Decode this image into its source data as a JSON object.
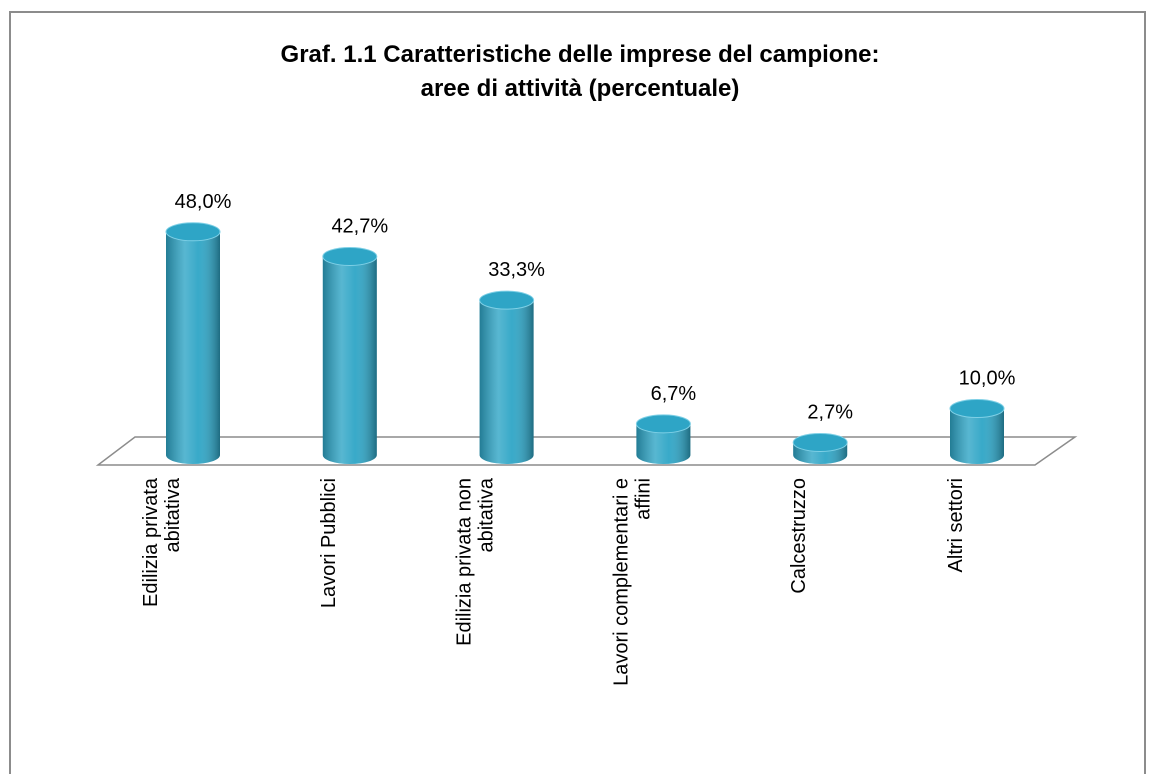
{
  "chart_data": {
    "type": "bar3d",
    "title": [
      "Graf. 1.1 Caratteristiche delle imprese del campione:",
      "aree di attività (percentuale)"
    ],
    "categories": [
      [
        "Edilizia privata",
        "abitativa"
      ],
      [
        "Lavori Pubblici"
      ],
      [
        "Edilizia privata non",
        "abitativa"
      ],
      [
        "Lavori complementari e",
        "affini"
      ],
      [
        "Calcestruzzo"
      ],
      [
        "Altri settori"
      ]
    ],
    "values": [
      48.0,
      42.7,
      33.3,
      6.7,
      2.7,
      10.0
    ],
    "value_labels": [
      "48,0%",
      "42,7%",
      "33,3%",
      "6,7%",
      "2,7%",
      "10,0%"
    ],
    "color": "#2ea5c6"
  }
}
